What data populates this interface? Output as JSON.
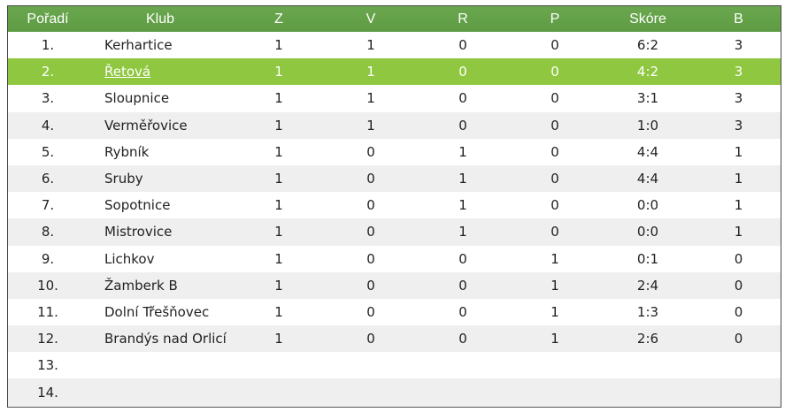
{
  "headers": [
    "Pořadí",
    "Klub",
    "Z",
    "V",
    "R",
    "P",
    "Skóre",
    "B"
  ],
  "colors": {
    "header": "#5f9d45",
    "highlight": "#8fc740",
    "stripe": "#efefef"
  },
  "rows": [
    {
      "pos": "1.",
      "club": "Kerhartice",
      "z": "1",
      "v": "1",
      "r": "0",
      "p": "0",
      "score": "6:2",
      "b": "3"
    },
    {
      "pos": "2.",
      "club": "Řetová",
      "z": "1",
      "v": "1",
      "r": "0",
      "p": "0",
      "score": "4:2",
      "b": "3",
      "highlight": true
    },
    {
      "pos": "3.",
      "club": "Sloupnice",
      "z": "1",
      "v": "1",
      "r": "0",
      "p": "0",
      "score": "3:1",
      "b": "3"
    },
    {
      "pos": "4.",
      "club": "Verměřovice",
      "z": "1",
      "v": "1",
      "r": "0",
      "p": "0",
      "score": "1:0",
      "b": "3"
    },
    {
      "pos": "5.",
      "club": "Rybník",
      "z": "1",
      "v": "0",
      "r": "1",
      "p": "0",
      "score": "4:4",
      "b": "1"
    },
    {
      "pos": "6.",
      "club": "Sruby",
      "z": "1",
      "v": "0",
      "r": "1",
      "p": "0",
      "score": "4:4",
      "b": "1"
    },
    {
      "pos": "7.",
      "club": "Sopotnice",
      "z": "1",
      "v": "0",
      "r": "1",
      "p": "0",
      "score": "0:0",
      "b": "1"
    },
    {
      "pos": "8.",
      "club": "Mistrovice",
      "z": "1",
      "v": "0",
      "r": "1",
      "p": "0",
      "score": "0:0",
      "b": "1"
    },
    {
      "pos": "9.",
      "club": "Lichkov",
      "z": "1",
      "v": "0",
      "r": "0",
      "p": "1",
      "score": "0:1",
      "b": "0"
    },
    {
      "pos": "10.",
      "club": "Žamberk B",
      "z": "1",
      "v": "0",
      "r": "0",
      "p": "1",
      "score": "2:4",
      "b": "0"
    },
    {
      "pos": "11.",
      "club": "Dolní Třešňovec",
      "z": "1",
      "v": "0",
      "r": "0",
      "p": "1",
      "score": "1:3",
      "b": "0"
    },
    {
      "pos": "12.",
      "club": "Brandýs nad Orlicí",
      "z": "1",
      "v": "0",
      "r": "0",
      "p": "1",
      "score": "2:6",
      "b": "0"
    },
    {
      "pos": "13.",
      "club": "",
      "z": "",
      "v": "",
      "r": "",
      "p": "",
      "score": "",
      "b": ""
    },
    {
      "pos": "14.",
      "club": "",
      "z": "",
      "v": "",
      "r": "",
      "p": "",
      "score": "",
      "b": ""
    }
  ]
}
